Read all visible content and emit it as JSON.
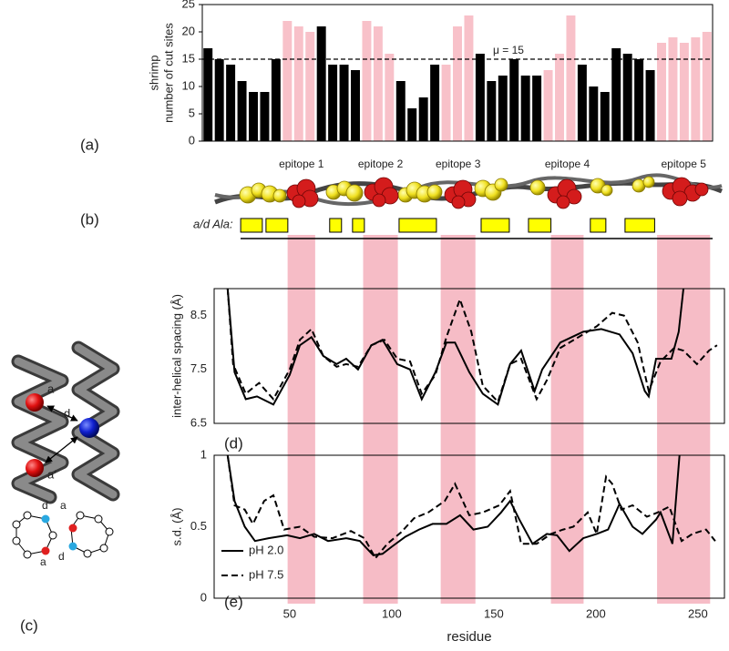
{
  "panel_labels": [
    "(a)",
    "(b)",
    "(c)",
    "(d)",
    "(e)"
  ],
  "ala_label": "a/d Ala:",
  "ala_regions": [
    [
      26,
      36.6
    ],
    [
      38.4,
      49.1
    ],
    [
      69.6,
      75.4
    ],
    [
      80.8,
      86.6
    ],
    [
      103.6,
      121.9
    ],
    [
      143.8,
      157.6
    ],
    [
      167,
      178
    ],
    [
      197.3,
      204.9
    ],
    [
      214.3,
      228.8
    ]
  ],
  "epitopes": [
    {
      "label": "epitope 1",
      "range": [
        49,
        62.5
      ]
    },
    {
      "label": "epitope 2",
      "range": [
        86,
        103
      ]
    },
    {
      "label": "epitope 3",
      "range": [
        124,
        141
      ]
    },
    {
      "label": "epitope 4",
      "range": [
        178,
        194
      ]
    },
    {
      "label": "epitope 5",
      "range": [
        230,
        256
      ]
    }
  ],
  "helix_labels": [
    "a",
    "d",
    "a′"
  ],
  "wheel_labels": [
    "d",
    "a",
    "a",
    "d"
  ],
  "chart_data": [
    {
      "type": "bar",
      "ylabel": [
        "shrimp",
        "number of cut sites"
      ],
      "values": [
        17,
        15,
        14,
        11,
        9,
        9,
        15,
        22,
        21,
        20,
        21,
        14,
        14,
        13,
        22,
        21,
        16,
        11,
        6,
        8,
        14,
        14,
        21,
        23,
        16,
        11,
        12,
        15,
        12,
        12,
        13,
        16,
        23,
        14,
        10,
        9,
        17,
        16,
        15,
        13,
        18,
        19,
        18,
        19,
        20
      ],
      "colors": [
        "#000000",
        "#000000",
        "#000000",
        "#000000",
        "#000000",
        "#000000",
        "#000000",
        "#f8c1c9",
        "#f8c1c9",
        "#f8c1c9",
        "#000000",
        "#000000",
        "#000000",
        "#000000",
        "#f8c1c9",
        "#f8c1c9",
        "#f8c1c9",
        "#000000",
        "#000000",
        "#000000",
        "#000000",
        "#f8c1c9",
        "#f8c1c9",
        "#f8c1c9",
        "#000000",
        "#000000",
        "#000000",
        "#000000",
        "#000000",
        "#000000",
        "#f8c1c9",
        "#f8c1c9",
        "#f8c1c9",
        "#000000",
        "#000000",
        "#000000",
        "#000000",
        "#000000",
        "#000000",
        "#000000",
        "#f8c1c9",
        "#f8c1c9",
        "#f8c1c9",
        "#f8c1c9",
        "#f8c1c9"
      ],
      "mean_line": {
        "value": 15,
        "label": "μ = 15"
      },
      "ylim": [
        0,
        25
      ],
      "yticks": [
        0,
        5,
        10,
        15,
        20,
        25
      ],
      "grid": false
    },
    {
      "type": "line",
      "ylabel": "inter-helical  spacing (Å)",
      "xlim": [
        13,
        263
      ],
      "ylim": [
        6.5,
        9.0
      ],
      "yticks": [
        6.5,
        7.5,
        8.5
      ],
      "grid": false,
      "series": [
        {
          "color": "#000000",
          "dash": false,
          "x": [
            19.6,
            23,
            28.5,
            34,
            42,
            50,
            55,
            60.7,
            66.5,
            73,
            77.7,
            83.5,
            90,
            95.5,
            102.7,
            109,
            114.7,
            121.4,
            126.8,
            131,
            138,
            144.6,
            152,
            158,
            163.4,
            170,
            173.7,
            182.6,
            193.8,
            202.7,
            211.6,
            218,
            224,
            225.9,
            229.5,
            237,
            240.6,
            242.9
          ],
          "values": [
            9.0,
            7.45,
            6.95,
            7.0,
            6.85,
            7.4,
            7.95,
            8.1,
            7.75,
            7.6,
            7.7,
            7.5,
            7.95,
            8.05,
            7.6,
            7.5,
            6.95,
            7.45,
            8.0,
            8.0,
            7.45,
            7.05,
            6.85,
            7.6,
            7.85,
            7.1,
            7.5,
            8.0,
            8.2,
            8.25,
            8.15,
            7.8,
            7.1,
            7.0,
            7.7,
            7.7,
            8.2,
            9.0
          ]
        },
        {
          "color": "#000000",
          "dash": true,
          "x": [
            19.6,
            22.3,
            28.5,
            35,
            42,
            50,
            55,
            60.7,
            66.5,
            73,
            77.7,
            83.5,
            90,
            96.4,
            102.7,
            109,
            114.7,
            121.4,
            126.8,
            133.4,
            139,
            144.6,
            152,
            158,
            163.4,
            171,
            176,
            182.6,
            191.5,
            200.4,
            208,
            213.8,
            220.5,
            225.9,
            231.7,
            238.4,
            242.9,
            249.5,
            255.4,
            259.4
          ],
          "values": [
            9.0,
            7.6,
            7.05,
            7.25,
            6.95,
            7.5,
            8.05,
            8.25,
            7.75,
            7.55,
            7.6,
            7.55,
            7.95,
            8.05,
            7.7,
            7.65,
            7.05,
            7.4,
            8.1,
            8.8,
            8.2,
            7.2,
            6.9,
            7.6,
            7.7,
            6.95,
            7.3,
            7.9,
            8.1,
            8.3,
            8.55,
            8.5,
            8.0,
            7.1,
            7.65,
            7.9,
            7.85,
            7.6,
            7.85,
            7.95
          ]
        }
      ]
    },
    {
      "type": "line",
      "ylabel": "s.d. (Å)",
      "xlabel": "residue",
      "xlim": [
        13,
        263
      ],
      "xticks": [
        50,
        100,
        150,
        200,
        250
      ],
      "ylim": [
        0,
        1
      ],
      "yticks": [
        0,
        0.5,
        1
      ],
      "grid": false,
      "legend": "lower left",
      "series": [
        {
          "name": "pH 2.0",
          "color": "#000000",
          "dash": false,
          "x": [
            19.6,
            23,
            28,
            33,
            39.7,
            48.7,
            55,
            62,
            68.8,
            77.7,
            84.4,
            91,
            95.5,
            100,
            106.7,
            113.4,
            120,
            126.8,
            133.5,
            140,
            147,
            153.6,
            158,
            162.5,
            169,
            176,
            181,
            187,
            193.8,
            200.4,
            206,
            211.6,
            218,
            222.8,
            229.5,
            231.7,
            237.5,
            241
          ],
          "values": [
            1.0,
            0.68,
            0.5,
            0.4,
            0.42,
            0.44,
            0.42,
            0.45,
            0.4,
            0.42,
            0.4,
            0.3,
            0.31,
            0.36,
            0.43,
            0.48,
            0.52,
            0.52,
            0.58,
            0.48,
            0.5,
            0.6,
            0.68,
            0.55,
            0.38,
            0.45,
            0.44,
            0.33,
            0.42,
            0.45,
            0.48,
            0.66,
            0.5,
            0.45,
            0.55,
            0.6,
            0.38,
            1.0
          ]
        },
        {
          "name": "pH 7.5",
          "color": "#000000",
          "dash": true,
          "x": [
            19.6,
            23,
            28,
            32,
            37.5,
            42,
            47.3,
            55,
            62,
            71,
            80,
            86.6,
            92,
            97.8,
            104.5,
            111,
            117.9,
            126,
            131,
            138,
            144.6,
            152.7,
            158,
            163.4,
            171,
            178,
            184,
            189,
            196,
            200.4,
            205,
            208,
            212.5,
            218,
            225,
            230.3,
            236,
            242,
            247.3,
            254,
            258.5
          ],
          "values": [
            1.0,
            0.65,
            0.62,
            0.52,
            0.68,
            0.72,
            0.48,
            0.5,
            0.43,
            0.42,
            0.47,
            0.42,
            0.28,
            0.38,
            0.46,
            0.56,
            0.6,
            0.68,
            0.8,
            0.58,
            0.6,
            0.65,
            0.75,
            0.38,
            0.38,
            0.45,
            0.48,
            0.5,
            0.6,
            0.45,
            0.85,
            0.8,
            0.62,
            0.65,
            0.57,
            0.6,
            0.64,
            0.4,
            0.45,
            0.48,
            0.4
          ]
        }
      ]
    }
  ]
}
